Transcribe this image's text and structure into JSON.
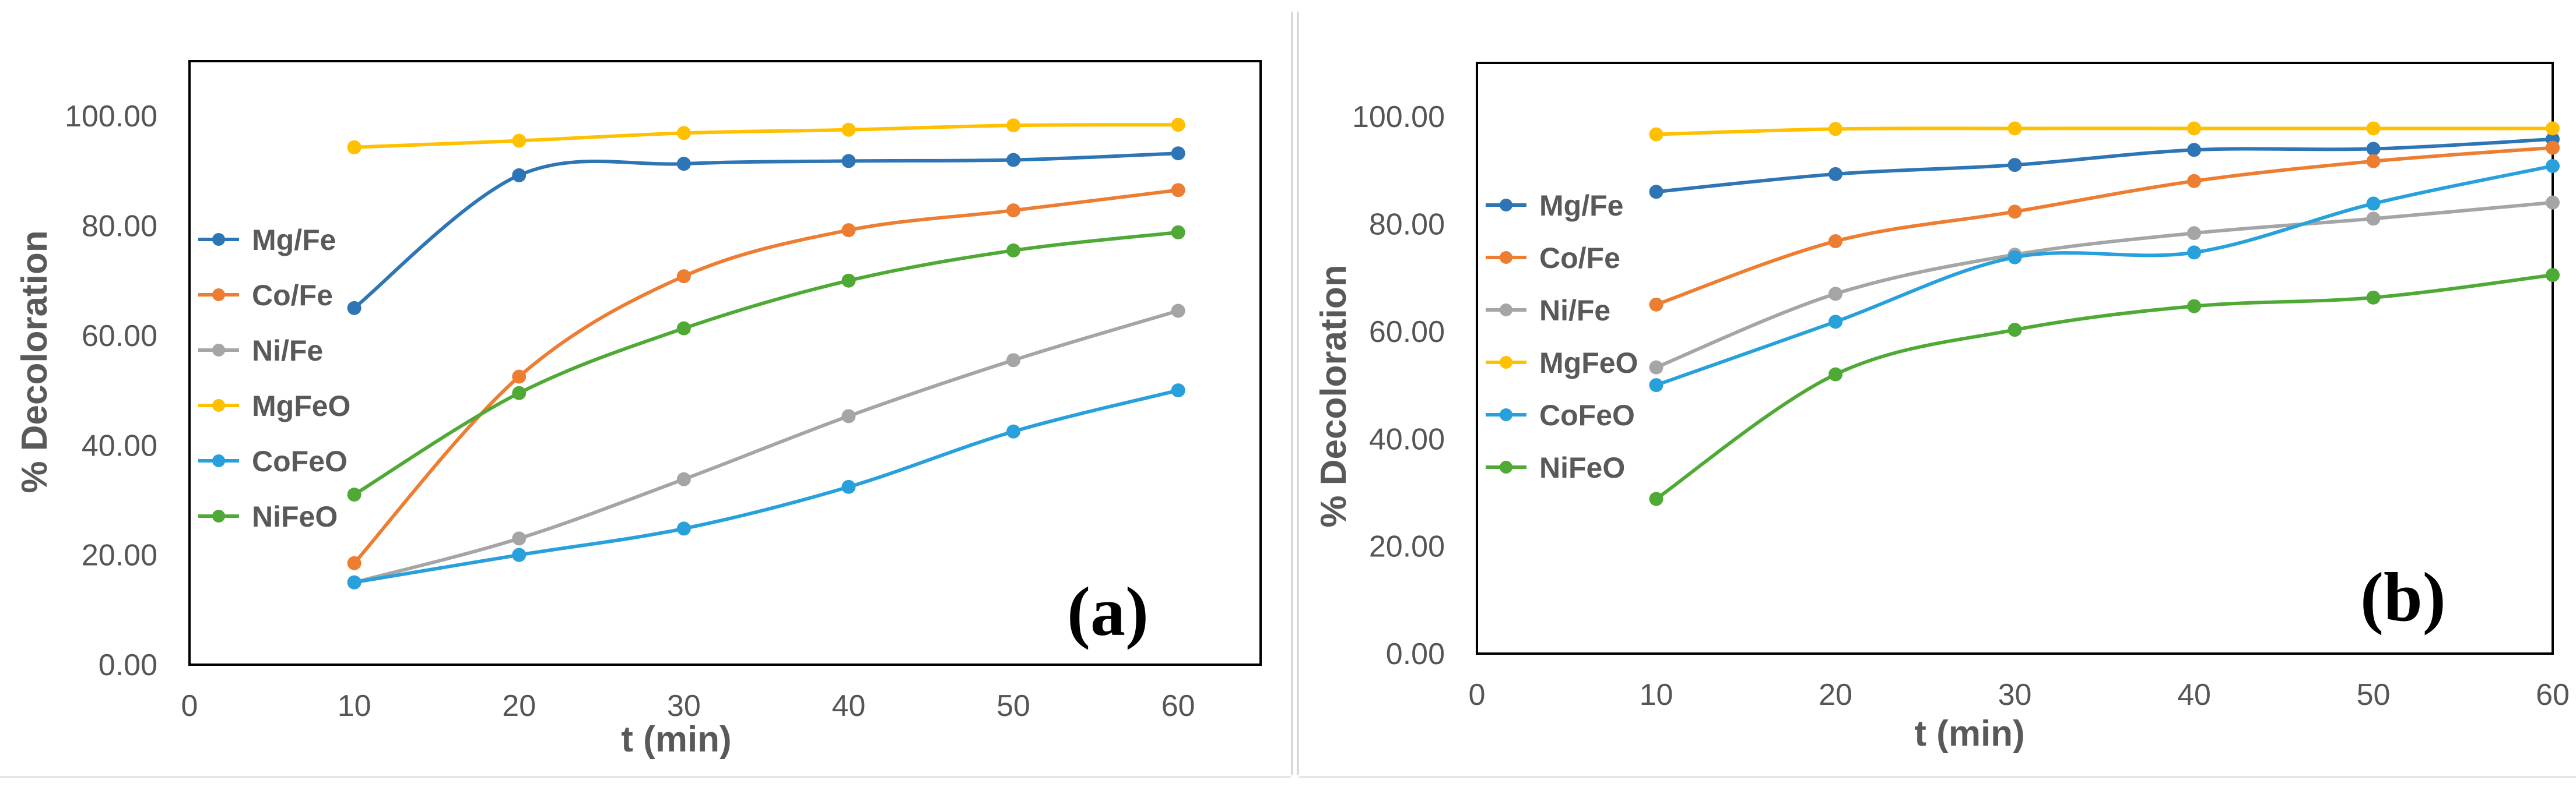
{
  "chart_data": [
    {
      "type": "line",
      "panel_label": "(a)",
      "xlabel": "t (min)",
      "ylabel": "% Decoloration",
      "xlim": [
        0,
        65
      ],
      "ylim": [
        0,
        110
      ],
      "xticks": [
        0,
        10,
        20,
        30,
        40,
        50,
        60
      ],
      "yticks": [
        "0.00",
        "20.00",
        "40.00",
        "60.00",
        "80.00",
        "100.00"
      ],
      "grid": false,
      "legend_position": "left",
      "x": [
        10,
        20,
        30,
        40,
        50,
        60
      ],
      "series": [
        {
          "name": "Mg/Fe",
          "color": "#2E75B6",
          "values": [
            65.0,
            89.2,
            91.3,
            91.8,
            92.0,
            93.2
          ]
        },
        {
          "name": "Co/Fe",
          "color": "#ED7D31",
          "values": [
            18.5,
            52.5,
            70.8,
            79.2,
            82.8,
            86.5
          ]
        },
        {
          "name": "Ni/Fe",
          "color": "#A5A5A5",
          "values": [
            15.0,
            23.0,
            33.8,
            45.3,
            55.5,
            64.5
          ]
        },
        {
          "name": "MgFeO",
          "color": "#FFC000",
          "values": [
            94.3,
            95.5,
            96.9,
            97.5,
            98.3,
            98.4
          ]
        },
        {
          "name": "CoFeO",
          "color": "#27A0DC",
          "values": [
            15.0,
            20.0,
            24.8,
            32.4,
            42.5,
            50.0
          ]
        },
        {
          "name": "NiFeO",
          "color": "#4EAA34",
          "values": [
            31.0,
            49.5,
            61.3,
            70.0,
            75.5,
            78.8
          ]
        }
      ]
    },
    {
      "type": "line",
      "panel_label": "(b)",
      "xlabel": "t (min)",
      "ylabel": "% Decoloration",
      "xlim": [
        0,
        60
      ],
      "ylim": [
        0,
        110
      ],
      "xticks": [
        0,
        10,
        20,
        30,
        40,
        50,
        60
      ],
      "yticks": [
        "0.00",
        "20.00",
        "40.00",
        "60.00",
        "80.00",
        "100.00"
      ],
      "grid": false,
      "legend_position": "left",
      "x": [
        10,
        20,
        30,
        40,
        50,
        60
      ],
      "series": [
        {
          "name": "Mg/Fe",
          "color": "#2E75B6",
          "values": [
            86.0,
            89.3,
            91.0,
            93.8,
            94.0,
            95.8
          ]
        },
        {
          "name": "Co/Fe",
          "color": "#ED7D31",
          "values": [
            65.0,
            76.8,
            82.3,
            88.0,
            91.7,
            94.2
          ]
        },
        {
          "name": "Ni/Fe",
          "color": "#A5A5A5",
          "values": [
            53.3,
            67.0,
            74.3,
            78.3,
            81.0,
            84.0
          ]
        },
        {
          "name": "MgFeO",
          "color": "#FFC000",
          "values": [
            96.7,
            97.7,
            97.8,
            97.8,
            97.8,
            97.8
          ]
        },
        {
          "name": "CoFeO",
          "color": "#27A0DC",
          "values": [
            50.0,
            61.8,
            73.8,
            74.7,
            83.8,
            90.8
          ]
        },
        {
          "name": "NiFeO",
          "color": "#4EAA34",
          "values": [
            28.8,
            52.0,
            60.3,
            64.7,
            66.3,
            70.5
          ]
        }
      ]
    }
  ]
}
